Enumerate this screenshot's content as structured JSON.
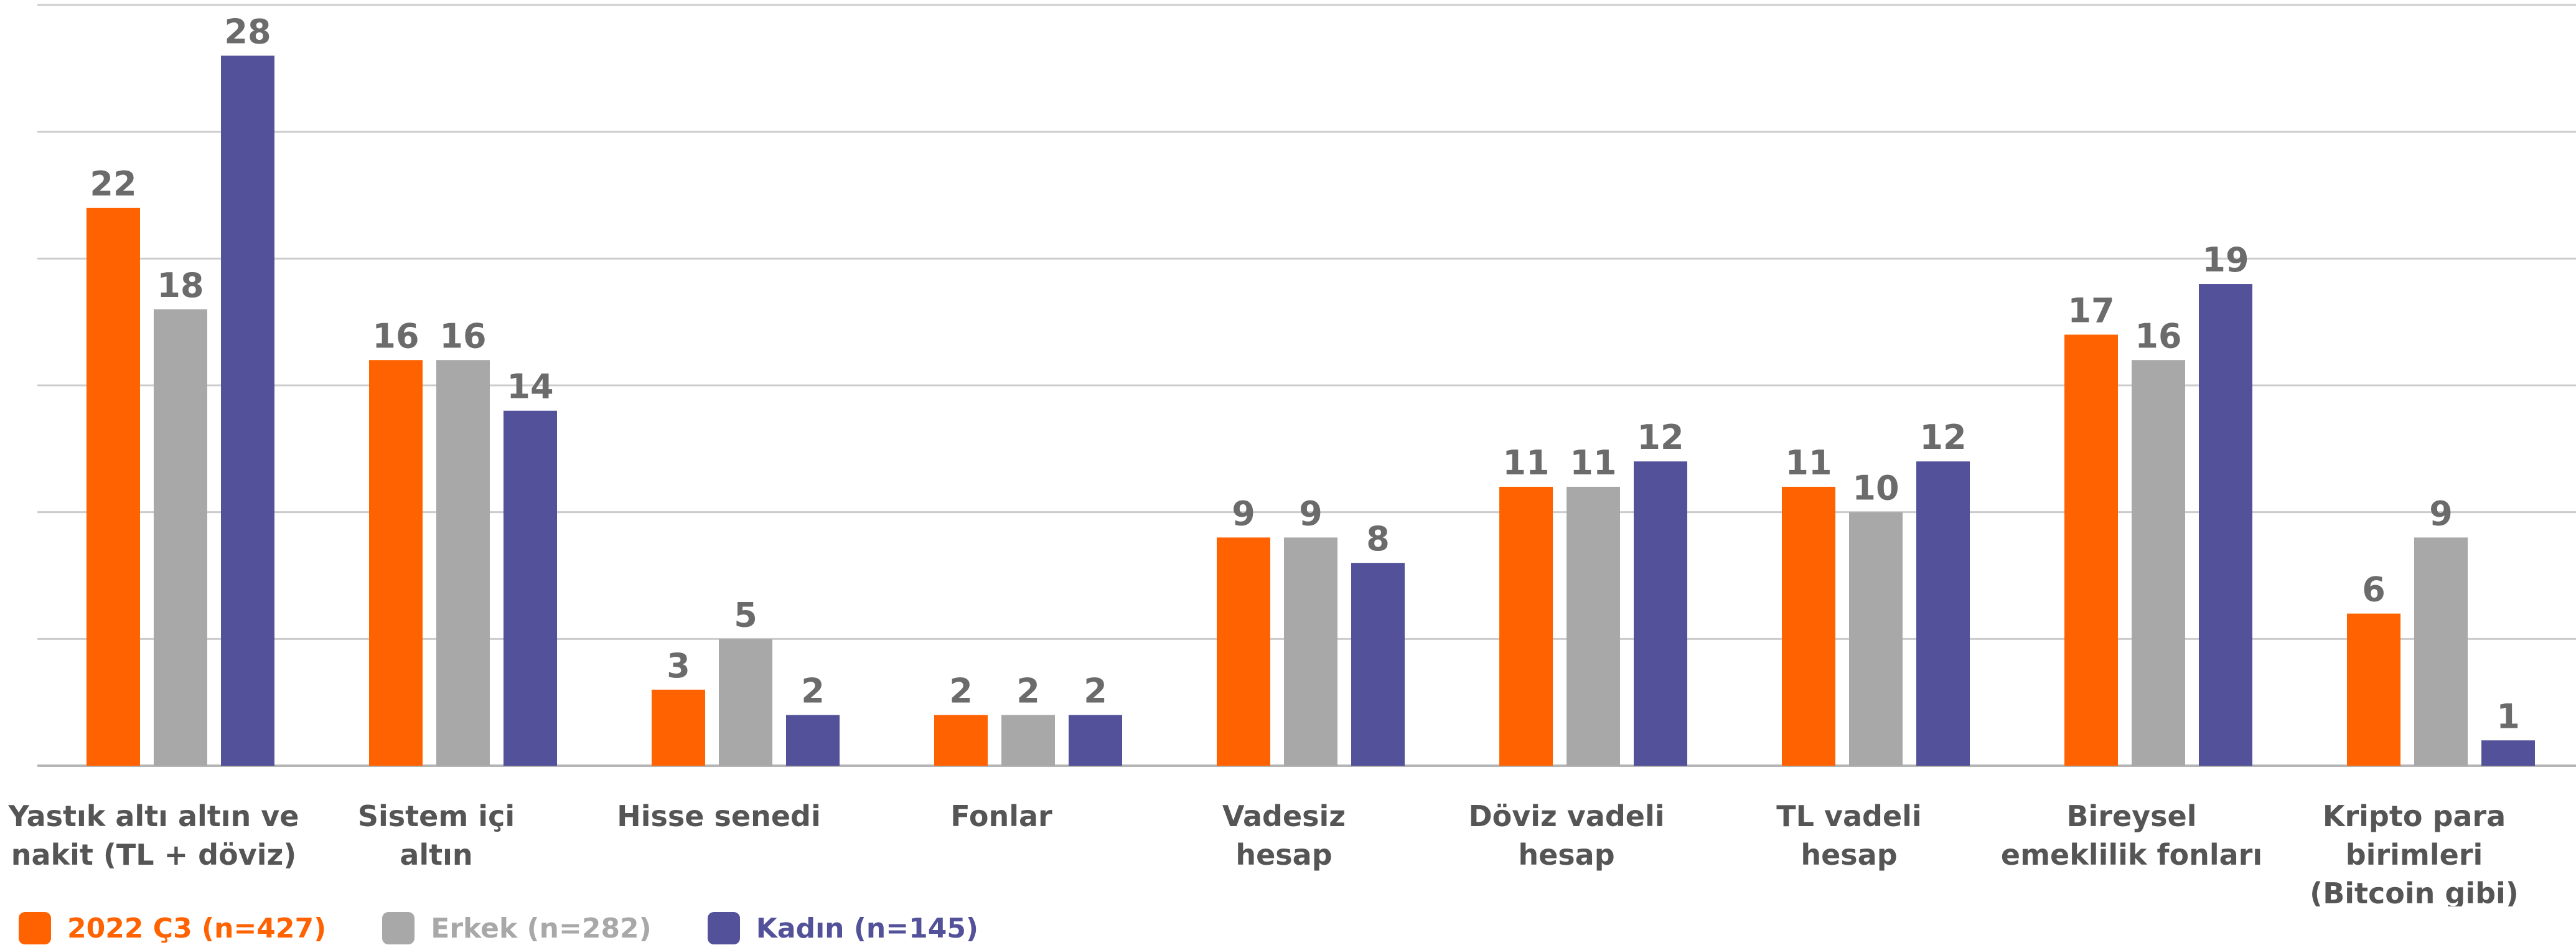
{
  "chart_data": {
    "type": "bar",
    "categories": [
      [
        "Yastık altı altın ve",
        "nakit (TL + döviz)"
      ],
      [
        "Sistem içi",
        "altın"
      ],
      [
        "Hisse senedi"
      ],
      [
        "Fonlar"
      ],
      [
        "Vadesiz",
        "hesap"
      ],
      [
        "Döviz vadeli",
        "hesap"
      ],
      [
        "TL vadeli",
        "hesap"
      ],
      [
        "Bireysel",
        "emeklilik fonları"
      ],
      [
        "Kripto para",
        "birimleri",
        "(Bitcoin gibi)"
      ]
    ],
    "series": [
      {
        "name": "2022 Ç3 (n=427)",
        "color": "#ff6200",
        "values": [
          22,
          16,
          3,
          2,
          9,
          11,
          11,
          17,
          6
        ]
      },
      {
        "name": "Erkek (n=282)",
        "color": "#a8a8a8",
        "values": [
          18,
          16,
          5,
          2,
          9,
          11,
          10,
          16,
          9
        ]
      },
      {
        "name": "Kadın (n=145)",
        "color": "#525199",
        "values": [
          28,
          14,
          2,
          2,
          8,
          12,
          12,
          19,
          1
        ]
      }
    ],
    "ylim": [
      0,
      30
    ],
    "grid": true,
    "legend": "bottom-left",
    "colors": {
      "value_label": "#6b6b6b",
      "category_label": "#555555",
      "gridline": "#cccccc"
    }
  }
}
